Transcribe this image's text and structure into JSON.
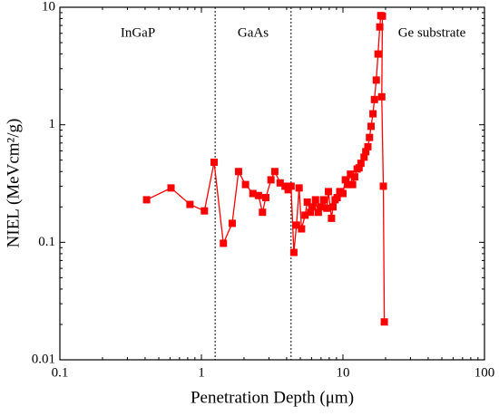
{
  "chart_data": {
    "type": "line",
    "x_label": "Penetration Depth (μm)",
    "y_label": "NIEL (MeVcm²/g)",
    "log_x": true,
    "log_y": true,
    "xlim": [
      0.1,
      100
    ],
    "xticks": [
      0.1,
      1,
      10,
      100
    ],
    "ylim": [
      0.01,
      10
    ],
    "yticks": [
      0.01,
      0.1,
      1,
      10
    ],
    "dividers": [
      1.25,
      4.3
    ],
    "annotations": [
      "InGaP",
      "GaAs",
      "Ge substrate"
    ],
    "series": [
      {
        "color": "#ff0000",
        "x": [
          0.41,
          0.61,
          0.83,
          1.05,
          1.23,
          1.43,
          1.65,
          1.83,
          2.05,
          2.31,
          2.53,
          2.7,
          2.85,
          3.1,
          3.3,
          3.6,
          3.9,
          4.1,
          4.3,
          4.5,
          4.7,
          4.9,
          5.1,
          5.4,
          5.6,
          5.9,
          6.1,
          6.4,
          6.7,
          7.0,
          7.3,
          7.7,
          7.9,
          8.3,
          8.5,
          8.8,
          9.1,
          9.5,
          10,
          10.4,
          10.8,
          11.3,
          11.7,
          12.1,
          12.6,
          13.0,
          13.4,
          14.1,
          14.5,
          15,
          15.4,
          15.8,
          16.3,
          16.7,
          17.2,
          17.7,
          18.2,
          18.5,
          19.0,
          18.8,
          19.3,
          19.6
        ],
        "values": [
          0.23,
          0.29,
          0.21,
          0.185,
          0.48,
          0.098,
          0.145,
          0.4,
          0.31,
          0.26,
          0.25,
          0.18,
          0.24,
          0.34,
          0.4,
          0.32,
          0.3,
          0.28,
          0.3,
          0.082,
          0.14,
          0.29,
          0.13,
          0.17,
          0.22,
          0.18,
          0.2,
          0.23,
          0.18,
          0.2,
          0.23,
          0.195,
          0.27,
          0.16,
          0.2,
          0.23,
          0.24,
          0.27,
          0.26,
          0.34,
          0.31,
          0.38,
          0.31,
          0.36,
          0.42,
          0.43,
          0.47,
          0.53,
          0.59,
          0.65,
          0.78,
          0.97,
          1.24,
          1.64,
          2.4,
          4.0,
          6.8,
          8.5,
          8.4,
          1.73,
          0.3,
          0.021
        ]
      }
    ]
  }
}
